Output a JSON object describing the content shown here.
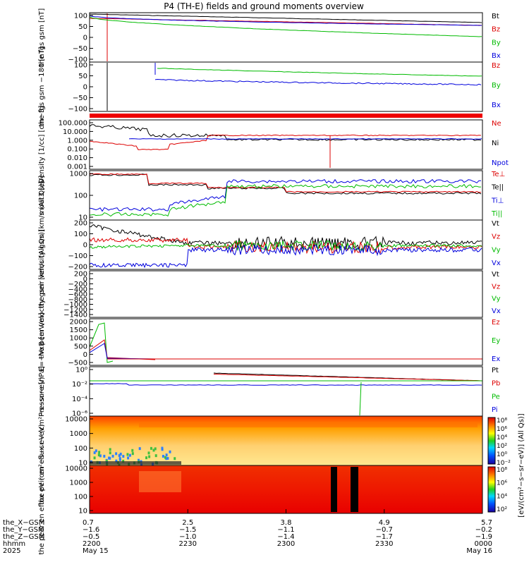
{
  "figure": {
    "title": "P4 (TH-E) fields and ground moments overview"
  },
  "chart_data": [
    {
      "type": "line",
      "ylabel": "the fgs gsm [nT]",
      "yticks": [
        "100",
        "50",
        "0",
        "−50",
        "−100"
      ],
      "ylim": [
        -100,
        100
      ],
      "legend": [
        {
          "label": "Bt",
          "color": "#000000"
        },
        {
          "label": "Bz",
          "color": "#dd0000"
        },
        {
          "label": "By",
          "color": "#00bb00"
        },
        {
          "label": "Bx",
          "color": "#0000dd"
        }
      ]
    },
    {
      "type": "line",
      "ylabel": "the fgs gsm −180 [nT]",
      "yticks": [
        "100",
        "50",
        "0",
        "−50",
        "−100"
      ],
      "ylim": [
        -100,
        100
      ],
      "legend": [
        {
          "label": "Bz",
          "color": "#dd0000"
        },
        {
          "label": "By",
          "color": "#00bb00"
        },
        {
          "label": "Bx",
          "color": "#0000dd"
        }
      ]
    },
    {
      "type": "line",
      "ylabel": "Density [1/cc] [cm−3]",
      "yticks": [
        "100.000",
        "10.000",
        "1.000",
        "0.100",
        "0.010",
        "0.001"
      ],
      "scale": "log",
      "legend": [
        {
          "label": "Ne",
          "color": "#dd0000"
        },
        {
          "label": "Ni",
          "color": "#000000"
        },
        {
          "label": "Npot",
          "color": "#0000dd"
        }
      ]
    },
    {
      "type": "line",
      "ylabel": "moat3 [eV]",
      "yticks": [
        "1000",
        "100",
        "10"
      ],
      "scale": "log",
      "legend": [
        {
          "label": "Te⊥",
          "color": "#dd0000"
        },
        {
          "label": "Te||",
          "color": "#000000"
        },
        {
          "label": "Ti⊥",
          "color": "#0000dd"
        },
        {
          "label": "Ti||",
          "color": "#00bb00"
        }
      ]
    },
    {
      "type": "line",
      "ylabel": "the peir velocity gsm [km/s (All Qs)]",
      "yticks": [
        "200",
        "100",
        "0",
        "−100",
        "−200"
      ],
      "ylim": [
        -200,
        200
      ],
      "legend": [
        {
          "label": "Vt",
          "color": "#000000"
        },
        {
          "label": "Vz",
          "color": "#dd0000"
        },
        {
          "label": "Vy",
          "color": "#00bb00"
        },
        {
          "label": "Vx",
          "color": "#0000dd"
        }
      ]
    },
    {
      "type": "line",
      "ylabel": "the peer velocity gsm [km/s (All Qs)]",
      "yticks": [
        "200",
        "0",
        "−200",
        "−400",
        "−600",
        "−800",
        "−1000",
        "−1200",
        "−1400"
      ],
      "ylim": [
        -1400,
        200
      ],
      "legend": [
        {
          "label": "Vt",
          "color": "#000000"
        },
        {
          "label": "Vz",
          "color": "#dd0000"
        },
        {
          "label": "Vy",
          "color": "#00bb00"
        },
        {
          "label": "Vx",
          "color": "#0000dd"
        }
      ]
    },
    {
      "type": "line",
      "ylabel": "E=−VxB [mV/m]",
      "yticks": [
        "2000",
        "1500",
        "1000",
        "500",
        "0",
        "−500"
      ],
      "ylim": [
        -500,
        2000
      ],
      "legend": [
        {
          "label": "Ez",
          "color": "#dd0000"
        },
        {
          "label": "Ey",
          "color": "#00bb00"
        },
        {
          "label": "Ex",
          "color": "#0000dd"
        }
      ]
    },
    {
      "type": "line",
      "ylabel": "Pressure [nPa]",
      "yticks": [
        "10⁰",
        "10⁻²",
        "10⁻⁴",
        "10⁻⁶"
      ],
      "scale": "log",
      "legend": [
        {
          "label": "Pt",
          "color": "#000000"
        },
        {
          "label": "Pb",
          "color": "#dd0000"
        },
        {
          "label": "Pe",
          "color": "#00bb00"
        },
        {
          "label": "Pi",
          "color": "#0000dd"
        }
      ]
    },
    {
      "type": "heatmap",
      "ylabel": "the peir en eflux eV (cm²−s−sr−eV)",
      "yticks": [
        "10000",
        "1000",
        "100",
        "10"
      ],
      "scale": "log"
    },
    {
      "type": "heatmap",
      "ylabel": "the peer en eflux eV (cm²−s−sr−eV)",
      "yticks": [
        "10000",
        "1000",
        "100",
        "10"
      ],
      "scale": "log"
    }
  ],
  "colorbar": {
    "label": "[eV/(cm²−s−sr−eV)] (All Qs)]",
    "upper_ticks": [
      "10⁸",
      "10⁶",
      "10⁴",
      "10²",
      "10⁰",
      "10⁻²"
    ],
    "lower_ticks": [
      "10⁸",
      "10⁶",
      "10⁴",
      "10²"
    ]
  },
  "ephemeris": {
    "row_labels": [
      "the_X−GSM",
      "the_Y−GSM",
      "the_Z−GSM",
      "hhmm",
      "2025"
    ],
    "columns": [
      {
        "values": [
          "0.7",
          "−1.6",
          "−0.5",
          "2200",
          "May 15"
        ]
      },
      {
        "values": [
          "2.5",
          "−1.5",
          "−1.0",
          "2230",
          ""
        ]
      },
      {
        "values": [
          "3.8",
          "−1.1",
          "−1.4",
          "2300",
          ""
        ]
      },
      {
        "values": [
          "4.9",
          "−0.7",
          "−1.7",
          "2330",
          ""
        ]
      },
      {
        "values": [
          "5.7",
          "−0.2",
          "−1.9",
          "0000",
          "May 16"
        ]
      }
    ]
  }
}
